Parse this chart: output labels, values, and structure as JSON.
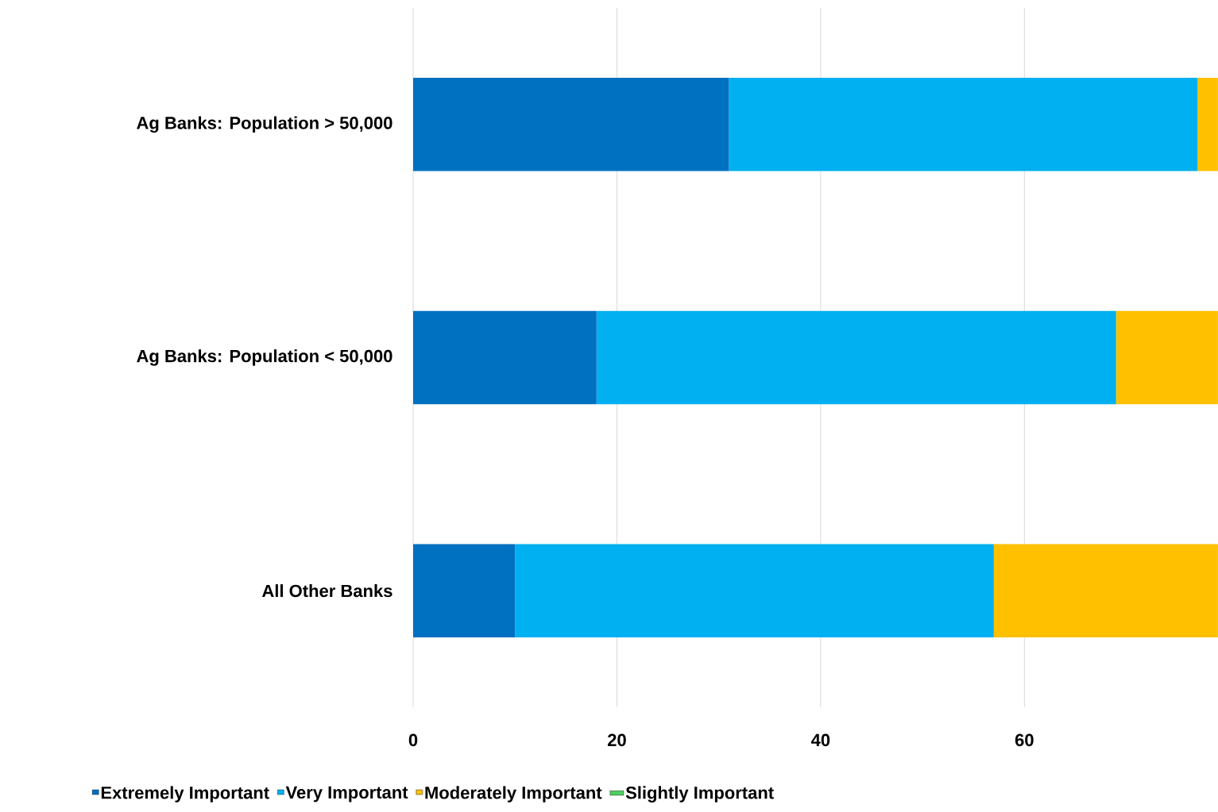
{
  "chart_data": {
    "type": "bar",
    "orientation": "horizontal",
    "stacked": true,
    "categories": [
      "Ag Banks: Population > 50,000",
      "Ag Banks: Population < 50,000",
      "All Other Banks"
    ],
    "series": [
      {
        "name": "Extremely Important",
        "color": "#0070c0",
        "values": [
          31,
          18,
          10
        ]
      },
      {
        "name": "Very Important",
        "color": "#00b0f0",
        "values": [
          46,
          51,
          47
        ]
      },
      {
        "name": "Moderately Important",
        "color": "#ffc000",
        "values": [
          2,
          10,
          22
        ]
      },
      {
        "name": "Slightly Important",
        "color": "#4fd05f",
        "values": [
          null,
          null,
          null
        ]
      }
    ],
    "xlim": [
      0,
      79
    ],
    "xticks": [
      0,
      20,
      40,
      60
    ],
    "grid": "x",
    "legend": "bottom"
  }
}
